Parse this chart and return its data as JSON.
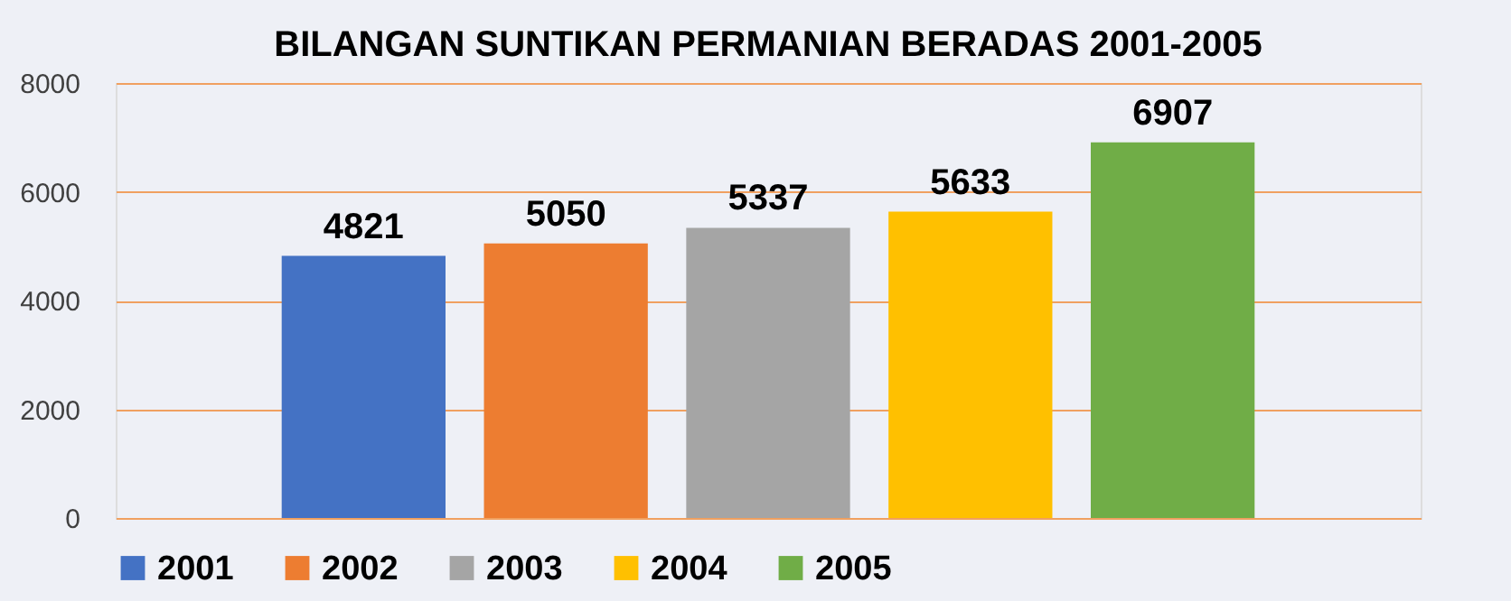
{
  "chart_data": {
    "type": "bar",
    "title": "BILANGAN SUNTIKAN PERMANIAN BERADAS 2001-2005",
    "categories": [
      null
    ],
    "series": [
      {
        "name": "2001",
        "color": "#4472c4",
        "values": [
          4821
        ]
      },
      {
        "name": "2002",
        "color": "#ed7d31",
        "values": [
          5050
        ]
      },
      {
        "name": "2003",
        "color": "#a5a5a5",
        "values": [
          5337
        ]
      },
      {
        "name": "2004",
        "color": "#ffc000",
        "values": [
          5633
        ]
      },
      {
        "name": "2005",
        "color": "#70ad47",
        "values": [
          6907
        ]
      }
    ],
    "ylim": [
      0,
      8000
    ],
    "yticks": [
      0,
      2000,
      4000,
      6000,
      8000
    ],
    "grid": "y",
    "legend": "bottom",
    "data_labels": true,
    "tick_labels": "y"
  }
}
